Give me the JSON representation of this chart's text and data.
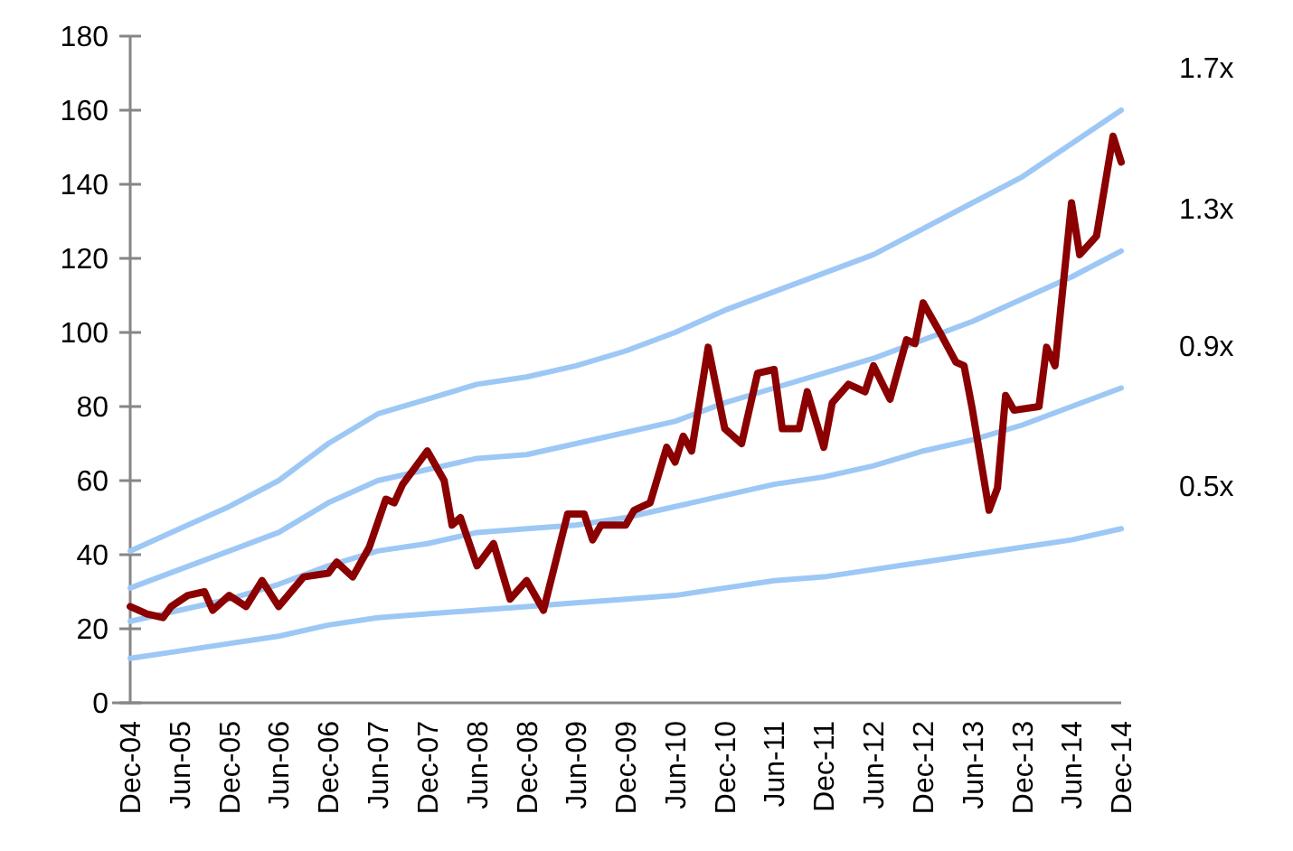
{
  "chart_data": {
    "type": "line",
    "x": [
      "2004-12",
      "2005-02",
      "2005-04",
      "2005-05",
      "2005-07",
      "2005-09",
      "2005-10",
      "2005-12",
      "2006-02",
      "2006-04",
      "2006-06",
      "2006-09",
      "2006-12",
      "2007-01",
      "2007-03",
      "2007-05",
      "2007-07",
      "2007-08",
      "2007-09",
      "2007-12",
      "2008-02",
      "2008-03",
      "2008-04",
      "2008-06",
      "2008-08",
      "2008-10",
      "2008-12",
      "2009-02",
      "2009-05",
      "2009-07",
      "2009-08",
      "2009-09",
      "2009-12",
      "2010-01",
      "2010-03",
      "2010-05",
      "2010-06",
      "2010-07",
      "2010-08",
      "2010-10",
      "2010-12",
      "2011-02",
      "2011-04",
      "2011-06",
      "2011-07",
      "2011-09",
      "2011-10",
      "2011-12",
      "2012-01",
      "2012-03",
      "2012-05",
      "2012-06",
      "2012-08",
      "2012-10",
      "2012-11",
      "2012-12",
      "2013-02",
      "2013-04",
      "2013-05",
      "2013-06",
      "2013-08",
      "2013-09",
      "2013-10",
      "2013-11",
      "2014-02",
      "2014-03",
      "2014-04",
      "2014-06",
      "2014-07",
      "2014-09",
      "2014-11",
      "2014-12"
    ],
    "series": [
      {
        "color": "#8b0000",
        "values": [
          26,
          24,
          23,
          26,
          29,
          30,
          25,
          29,
          26,
          33,
          26,
          34,
          35,
          38,
          34,
          42,
          55,
          54,
          59,
          68,
          60,
          48,
          50,
          37,
          43,
          28,
          33,
          25,
          51,
          51,
          44,
          48,
          48,
          52,
          54,
          69,
          65,
          72,
          68,
          96,
          74,
          70,
          89,
          90,
          74,
          74,
          84,
          69,
          81,
          86,
          84,
          91,
          82,
          98,
          97,
          108,
          100,
          92,
          91,
          79,
          52,
          58,
          83,
          79,
          80,
          96,
          91,
          135,
          121,
          126,
          153,
          146
        ]
      },
      {
        "name": "1.7x",
        "color": "#9dc8f5",
        "x": [
          "2004-12",
          "2005-06",
          "2005-12",
          "2006-06",
          "2006-12",
          "2007-06",
          "2007-12",
          "2008-06",
          "2008-12",
          "2009-06",
          "2009-12",
          "2010-06",
          "2010-12",
          "2011-06",
          "2011-12",
          "2012-06",
          "2012-12",
          "2013-06",
          "2013-12",
          "2014-06",
          "2014-12"
        ],
        "values": [
          41,
          47,
          53,
          60,
          70,
          78,
          82,
          86,
          88,
          91,
          95,
          100,
          106,
          111,
          116,
          121,
          128,
          135,
          142,
          151,
          160
        ]
      },
      {
        "name": "1.3x",
        "color": "#9dc8f5",
        "x": [
          "2004-12",
          "2005-06",
          "2005-12",
          "2006-06",
          "2006-12",
          "2007-06",
          "2007-12",
          "2008-06",
          "2008-12",
          "2009-06",
          "2009-12",
          "2010-06",
          "2010-12",
          "2011-06",
          "2011-12",
          "2012-06",
          "2012-12",
          "2013-06",
          "2013-12",
          "2014-06",
          "2014-12"
        ],
        "values": [
          31,
          36,
          41,
          46,
          54,
          60,
          63,
          66,
          67,
          70,
          73,
          76,
          81,
          85,
          89,
          93,
          98,
          103,
          109,
          115,
          122
        ]
      },
      {
        "name": "0.9x",
        "color": "#9dc8f5",
        "x": [
          "2004-12",
          "2005-06",
          "2005-12",
          "2006-06",
          "2006-12",
          "2007-06",
          "2007-12",
          "2008-06",
          "2008-12",
          "2009-06",
          "2009-12",
          "2010-06",
          "2010-12",
          "2011-06",
          "2011-12",
          "2012-06",
          "2012-12",
          "2013-06",
          "2013-12",
          "2014-06",
          "2014-12"
        ],
        "values": [
          22,
          25,
          28,
          32,
          37,
          41,
          43,
          46,
          47,
          48,
          50,
          53,
          56,
          59,
          61,
          64,
          68,
          71,
          75,
          80,
          85
        ]
      },
      {
        "name": "0.5x",
        "color": "#9dc8f5",
        "x": [
          "2004-12",
          "2005-06",
          "2005-12",
          "2006-06",
          "2006-12",
          "2007-06",
          "2007-12",
          "2008-06",
          "2008-12",
          "2009-06",
          "2009-12",
          "2010-06",
          "2010-12",
          "2011-06",
          "2011-12",
          "2012-06",
          "2012-12",
          "2013-06",
          "2013-12",
          "2014-06",
          "2014-12"
        ],
        "values": [
          12,
          14,
          16,
          18,
          21,
          23,
          24,
          25,
          26,
          27,
          28,
          29,
          31,
          33,
          34,
          36,
          38,
          40,
          42,
          44,
          47
        ]
      }
    ],
    "xlim": [
      "2004-12",
      "2014-12"
    ],
    "xticks": [
      {
        "value": "2004-12",
        "label": "Dec-04"
      },
      {
        "value": "2005-06",
        "label": "Jun-05"
      },
      {
        "value": "2005-12",
        "label": "Dec-05"
      },
      {
        "value": "2006-06",
        "label": "Jun-06"
      },
      {
        "value": "2006-12",
        "label": "Dec-06"
      },
      {
        "value": "2007-06",
        "label": "Jun-07"
      },
      {
        "value": "2007-12",
        "label": "Dec-07"
      },
      {
        "value": "2008-06",
        "label": "Jun-08"
      },
      {
        "value": "2008-12",
        "label": "Dec-08"
      },
      {
        "value": "2009-06",
        "label": "Jun-09"
      },
      {
        "value": "2009-12",
        "label": "Dec-09"
      },
      {
        "value": "2010-06",
        "label": "Jun-10"
      },
      {
        "value": "2010-12",
        "label": "Dec-10"
      },
      {
        "value": "2011-06",
        "label": "Jun-11"
      },
      {
        "value": "2011-12",
        "label": "Dec-11"
      },
      {
        "value": "2012-06",
        "label": "Jun-12"
      },
      {
        "value": "2012-12",
        "label": "Dec-12"
      },
      {
        "value": "2013-06",
        "label": "Jun-13"
      },
      {
        "value": "2013-12",
        "label": "Dec-13"
      },
      {
        "value": "2014-06",
        "label": "Jun-14"
      },
      {
        "value": "2014-12",
        "label": "Dec-14"
      }
    ],
    "ylim": [
      0,
      180
    ],
    "yticks": [
      0,
      20,
      40,
      60,
      80,
      100,
      120,
      140,
      160,
      180
    ],
    "grid": false,
    "marker": "none",
    "line_style": "solid"
  }
}
